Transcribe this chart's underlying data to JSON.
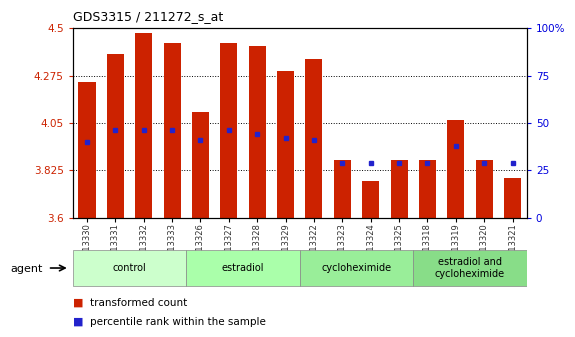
{
  "title": "GDS3315 / 211272_s_at",
  "samples": [
    "GSM213330",
    "GSM213331",
    "GSM213332",
    "GSM213333",
    "GSM213326",
    "GSM213327",
    "GSM213328",
    "GSM213329",
    "GSM213322",
    "GSM213323",
    "GSM213324",
    "GSM213325",
    "GSM213318",
    "GSM213319",
    "GSM213320",
    "GSM213321"
  ],
  "bar_heights": [
    4.245,
    4.375,
    4.475,
    4.43,
    4.1,
    4.43,
    4.415,
    4.295,
    4.355,
    3.875,
    3.775,
    3.875,
    3.875,
    4.065,
    3.875,
    3.79
  ],
  "blue_pct": [
    40,
    46,
    46,
    46,
    41,
    46,
    44,
    42,
    41,
    29,
    29,
    29,
    29,
    38,
    29,
    29
  ],
  "ylim": [
    3.6,
    4.5
  ],
  "yticks": [
    3.6,
    3.825,
    4.05,
    4.275,
    4.5
  ],
  "ytick_labels": [
    "3.6",
    "3.825",
    "4.05",
    "4.275",
    "4.5"
  ],
  "right_yticks": [
    0,
    25,
    50,
    75,
    100
  ],
  "right_ytick_labels": [
    "0",
    "25",
    "50",
    "75",
    "100%"
  ],
  "bar_color": "#CC2200",
  "blue_color": "#2222CC",
  "bg_color": "#FFFFFF",
  "groups": [
    {
      "label": "control",
      "start": 0,
      "end": 4
    },
    {
      "label": "estradiol",
      "start": 4,
      "end": 8
    },
    {
      "label": "cycloheximide",
      "start": 8,
      "end": 12
    },
    {
      "label": "estradiol and\ncycloheximide",
      "start": 12,
      "end": 16
    }
  ],
  "group_colors": [
    "#CCFFCC",
    "#AAFFAA",
    "#99EE99",
    "#88DD88"
  ],
  "xlabel_agent": "agent",
  "legend_items": [
    {
      "label": "transformed count",
      "color": "#CC2200"
    },
    {
      "label": "percentile rank within the sample",
      "color": "#2222CC"
    }
  ],
  "bar_width": 0.6,
  "axis_color_left": "#CC2200",
  "axis_color_right": "#0000DD",
  "tick_color": "#333333"
}
